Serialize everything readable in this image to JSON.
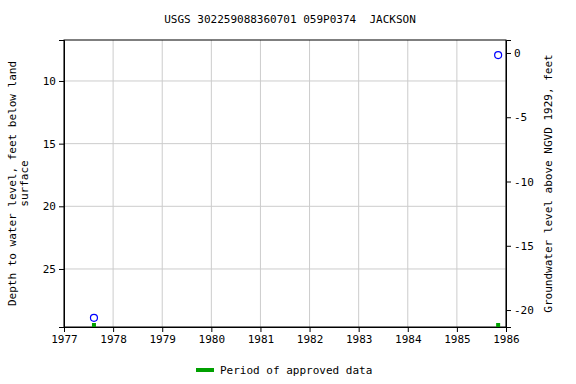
{
  "chart_data": {
    "type": "scatter",
    "title": "USGS 302259088360701 059P0374  JACKSON",
    "ylabel": [
      "Depth to water level, feet below land",
      "surface"
    ],
    "y2label": "Groundwater level above NGVD 1929, feet",
    "x": [
      1977.61,
      1985.84
    ],
    "series": [
      {
        "values": [
          28.9,
          7.93
        ],
        "color": "#0000ff",
        "marker": "circle-open"
      }
    ],
    "approved": {
      "name": "Period of approved data",
      "color": "#00a000",
      "x": [
        1977.61,
        1985.84
      ]
    },
    "xlim": [
      1977,
      1986
    ],
    "xticks": [
      1977,
      1978,
      1979,
      1980,
      1981,
      1982,
      1983,
      1984,
      1985,
      1986
    ],
    "ylim": [
      6.73,
      29.63
    ],
    "yticks": [
      10,
      15,
      20,
      25
    ],
    "y2lim": [
      1.01,
      -21.32
    ],
    "y2ticks": [
      0,
      -5,
      -10,
      -15,
      -20
    ],
    "grid": true,
    "legend": "bottom"
  }
}
